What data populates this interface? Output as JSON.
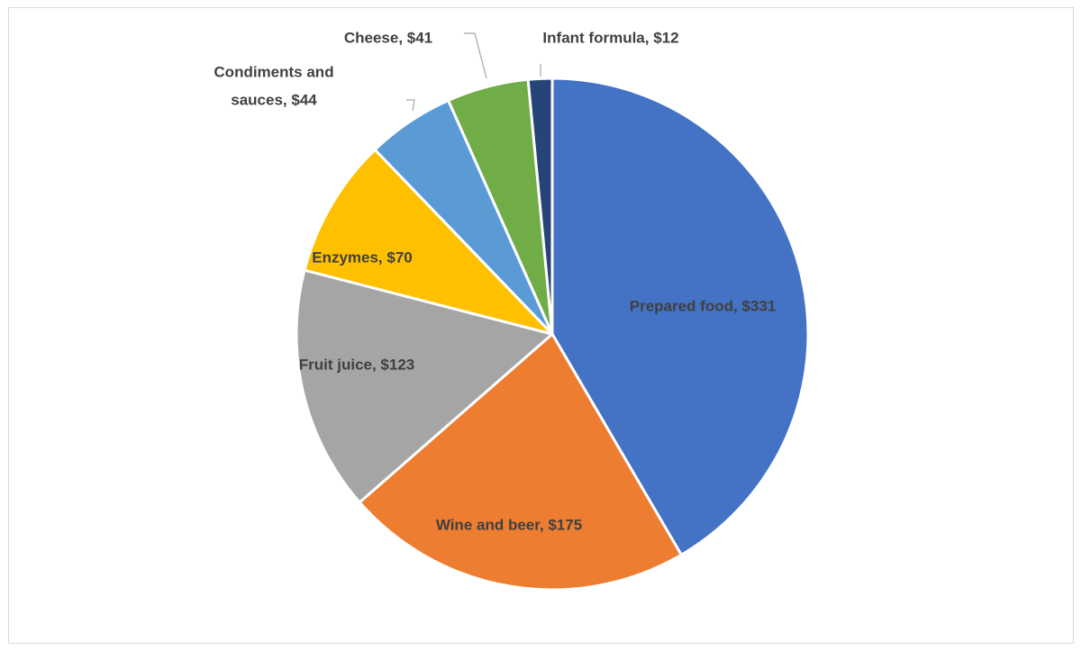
{
  "chart_data": {
    "type": "pie",
    "title": "",
    "start_angle_deg": 0,
    "direction": "clockwise",
    "slices": [
      {
        "name": "Prepared food",
        "value": 331,
        "label": "Prepared food, $331",
        "color": "#4472C4"
      },
      {
        "name": "Wine and beer",
        "value": 175,
        "label": "Wine and beer, $175",
        "color": "#ED7D31"
      },
      {
        "name": "Fruit juice",
        "value": 123,
        "label": "Fruit juice, $123",
        "color": "#A5A5A5"
      },
      {
        "name": "Enzymes",
        "value": 70,
        "label": "Enzymes, $70",
        "color": "#FFC000"
      },
      {
        "name": "Condiments and sauces",
        "value": 44,
        "label": "Condiments and sauces, $44",
        "color": "#5B9BD5"
      },
      {
        "name": "Cheese",
        "value": 41,
        "label": "Cheese, $41",
        "color": "#70AD47"
      },
      {
        "name": "Infant formula",
        "value": 12,
        "label": "Infant formula, $12",
        "color": "#264478"
      }
    ],
    "legend": "none",
    "data_label_color": "#404040"
  }
}
